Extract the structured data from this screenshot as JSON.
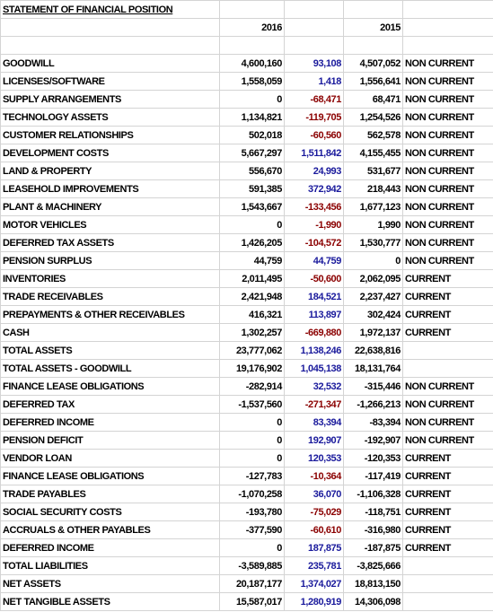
{
  "title": "STATEMENT OF FINANCIAL POSITION",
  "columns": [
    "2016",
    "2015"
  ],
  "rows": [
    [
      "GOODWILL",
      "4,600,160",
      "93,108",
      "4,507,052",
      "NON CURRENT"
    ],
    [
      "LICENSES/SOFTWARE",
      "1,558,059",
      "1,418",
      "1,556,641",
      "NON CURRENT"
    ],
    [
      "SUPPLY ARRANGEMENTS",
      "0",
      "-68,471",
      "68,471",
      "NON CURRENT"
    ],
    [
      "TECHNOLOGY ASSETS",
      "1,134,821",
      "-119,705",
      "1,254,526",
      "NON CURRENT"
    ],
    [
      "CUSTOMER RELATIONSHIPS",
      "502,018",
      "-60,560",
      "562,578",
      "NON CURRENT"
    ],
    [
      "DEVELOPMENT COSTS",
      "5,667,297",
      "1,511,842",
      "4,155,455",
      "NON CURRENT"
    ],
    [
      "LAND & PROPERTY",
      "556,670",
      "24,993",
      "531,677",
      "NON CURRENT"
    ],
    [
      "LEASEHOLD IMPROVEMENTS",
      "591,385",
      "372,942",
      "218,443",
      "NON CURRENT"
    ],
    [
      "PLANT & MACHINERY",
      "1,543,667",
      "-133,456",
      "1,677,123",
      "NON CURRENT"
    ],
    [
      "MOTOR VEHICLES",
      "0",
      "-1,990",
      "1,990",
      "NON CURRENT"
    ],
    [
      "DEFERRED TAX ASSETS",
      "1,426,205",
      "-104,572",
      "1,530,777",
      "NON CURRENT"
    ],
    [
      "PENSION SURPLUS",
      "44,759",
      "44,759",
      "0",
      "NON CURRENT"
    ],
    [
      "INVENTORIES",
      "2,011,495",
      "-50,600",
      "2,062,095",
      "CURRENT"
    ],
    [
      "TRADE RECEIVABLES",
      "2,421,948",
      "184,521",
      "2,237,427",
      "CURRENT"
    ],
    [
      "PREPAYMENTS & OTHER RECEIVABLES",
      "416,321",
      "113,897",
      "302,424",
      "CURRENT"
    ],
    [
      "CASH",
      "1,302,257",
      "-669,880",
      "1,972,137",
      "CURRENT"
    ],
    [
      "TOTAL ASSETS",
      "23,777,062",
      "1,138,246",
      "22,638,816"
    ],
    [
      "TOTAL ASSETS - GOODWILL",
      "19,176,902",
      "1,045,138",
      "18,131,764"
    ],
    [
      "FINANCE LEASE OBLIGATIONS",
      "-282,914",
      "32,532",
      "-315,446",
      "NON CURRENT"
    ],
    [
      "DEFERRED TAX",
      "-1,537,560",
      "-271,347",
      "-1,266,213",
      "NON CURRENT"
    ],
    [
      "DEFERRED INCOME",
      "0",
      "83,394",
      "-83,394",
      "NON CURRENT"
    ],
    [
      "PENSION DEFICIT",
      "0",
      "192,907",
      "-192,907",
      "NON CURRENT"
    ],
    [
      "VENDOR LOAN",
      "0",
      "120,353",
      "-120,353",
      "CURRENT"
    ],
    [
      "FINANCE LEASE OBLIGATIONS",
      "-127,783",
      "-10,364",
      "-117,419",
      "CURRENT"
    ],
    [
      "TRADE PAYABLES",
      "-1,070,258",
      "36,070",
      "-1,106,328",
      "CURRENT"
    ],
    [
      "SOCIAL SECURITY COSTS",
      "-193,780",
      "-75,029",
      "-118,751",
      "CURRENT"
    ],
    [
      "ACCRUALS & OTHER PAYABLES",
      "-377,590",
      "-60,610",
      "-316,980",
      "CURRENT"
    ],
    [
      "DEFERRED INCOME",
      "0",
      "187,875",
      "-187,875",
      "CURRENT"
    ],
    [
      "TOTAL LIABILITIES",
      "-3,589,885",
      "235,781",
      "-3,825,666"
    ],
    [
      "NET ASSETS",
      "20,187,177",
      "1,374,027",
      "18,813,150"
    ],
    [
      "NET TANGIBLE ASSETS",
      "15,587,017",
      "1,280,919",
      "14,306,098"
    ]
  ]
}
